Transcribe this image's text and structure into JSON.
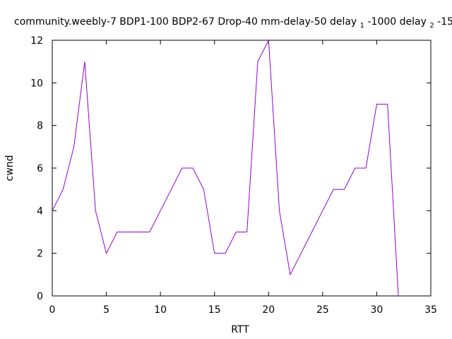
{
  "chart_data": {
    "type": "line",
    "title": {
      "main": "community.weebly-7 BDP1-100 BDP2-67 Drop-40 mm-delay-50 delay",
      "delay1_sub": "1",
      "delay1_value": "-1000 delay",
      "delay2_sub": "2",
      "delay2_value": "-15"
    },
    "xlabel": "RTT",
    "ylabel": "cwnd",
    "xlim": [
      0,
      35
    ],
    "ylim": [
      0,
      12
    ],
    "xticks": [
      0,
      5,
      10,
      15,
      20,
      25,
      30,
      35
    ],
    "yticks": [
      0,
      2,
      4,
      6,
      8,
      10,
      12
    ],
    "grid": false,
    "legend": "none",
    "series": [
      {
        "color": "#9400d3",
        "x": [
          0,
          1,
          2,
          3,
          4,
          5,
          6,
          7,
          8,
          9,
          10,
          11,
          12,
          13,
          14,
          15,
          16,
          17,
          18,
          19,
          20,
          21,
          22,
          23,
          24,
          25,
          26,
          27,
          28,
          29,
          30,
          31,
          32
        ],
        "y": [
          4,
          5,
          7,
          11,
          4,
          2,
          3,
          3,
          3,
          3,
          4,
          5,
          6,
          6,
          5,
          2,
          2,
          3,
          3,
          11,
          12,
          4,
          1,
          2,
          3,
          4,
          5,
          5,
          6,
          6,
          9,
          9,
          0
        ]
      }
    ]
  }
}
